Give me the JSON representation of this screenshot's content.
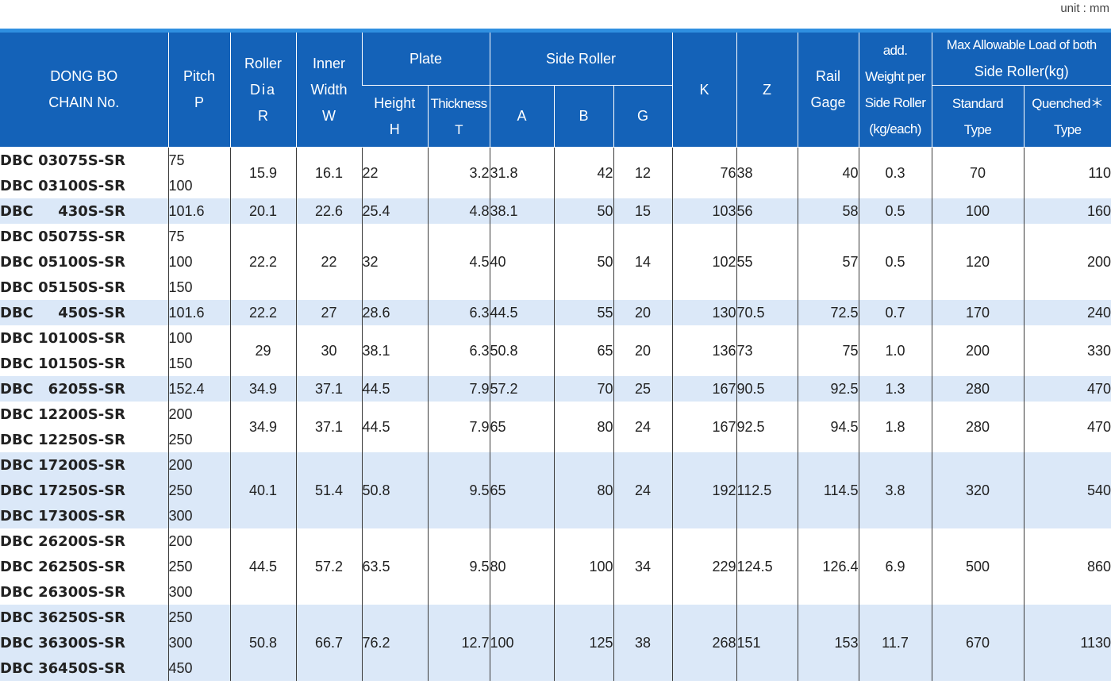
{
  "unit_label": "unit : mm",
  "header": {
    "chain_no": [
      "DONG BO",
      "CHAIN No."
    ],
    "pitch": [
      "Pitch",
      "P"
    ],
    "roller_dia": [
      "Roller",
      "Dia",
      "R"
    ],
    "inner_width": [
      "Inner",
      "Width",
      "W"
    ],
    "plate": "Plate",
    "plate_height": [
      "Height",
      "H"
    ],
    "plate_thickness": [
      "Thickness",
      "T"
    ],
    "side_roller": "Side Roller",
    "side_a": "A",
    "side_b": "B",
    "side_g": "G",
    "k": "K",
    "z": "Z",
    "rail_gage": [
      "Rail",
      "Gage"
    ],
    "add_weight": [
      "add.",
      "Weight per",
      "Side Roller",
      "(kg/each)"
    ],
    "max_load": [
      "Max Allowable Load of both",
      "Side Roller(kg)"
    ],
    "standard": [
      "Standard",
      "Type"
    ],
    "quenched": [
      "Quenched＊",
      "Type"
    ]
  },
  "groups": [
    {
      "chains": [
        {
          "no": "DBC 03075S-SR",
          "pitch": "75"
        },
        {
          "no": "DBC 03100S-SR",
          "pitch": "100"
        }
      ],
      "R": "15.9",
      "W": "16.1",
      "H": "22",
      "T": "3.2",
      "A": "31.8",
      "B": "42",
      "G": "12",
      "K": "76",
      "Z": "38",
      "rail": "40",
      "weight": "0.3",
      "standard": "70",
      "quenched": "110"
    },
    {
      "chains": [
        {
          "no": "DBC     430S-SR",
          "pitch": "101.6"
        }
      ],
      "R": "20.1",
      "W": "22.6",
      "H": "25.4",
      "T": "4.8",
      "A": "38.1",
      "B": "50",
      "G": "15",
      "K": "103",
      "Z": "56",
      "rail": "58",
      "weight": "0.5",
      "standard": "100",
      "quenched": "160"
    },
    {
      "chains": [
        {
          "no": "DBC 05075S-SR",
          "pitch": "75"
        },
        {
          "no": "DBC 05100S-SR",
          "pitch": "100"
        },
        {
          "no": "DBC 05150S-SR",
          "pitch": "150"
        }
      ],
      "R": "22.2",
      "W": "22",
      "H": "32",
      "T": "4.5",
      "A": "40",
      "B": "50",
      "G": "14",
      "K": "102",
      "Z": "55",
      "rail": "57",
      "weight": "0.5",
      "standard": "120",
      "quenched": "200"
    },
    {
      "chains": [
        {
          "no": "DBC     450S-SR",
          "pitch": "101.6"
        }
      ],
      "R": "22.2",
      "W": "27",
      "H": "28.6",
      "T": "6.3",
      "A": "44.5",
      "B": "55",
      "G": "20",
      "K": "130",
      "Z": "70.5",
      "rail": "72.5",
      "weight": "0.7",
      "standard": "170",
      "quenched": "240"
    },
    {
      "chains": [
        {
          "no": "DBC 10100S-SR",
          "pitch": "100"
        },
        {
          "no": "DBC 10150S-SR",
          "pitch": "150"
        }
      ],
      "R": "29",
      "W": "30",
      "H": "38.1",
      "T": "6.3",
      "A": "50.8",
      "B": "65",
      "G": "20",
      "K": "136",
      "Z": "73",
      "rail": "75",
      "weight": "1.0",
      "standard": "200",
      "quenched": "330"
    },
    {
      "chains": [
        {
          "no": "DBC   6205S-SR",
          "pitch": "152.4"
        }
      ],
      "R": "34.9",
      "W": "37.1",
      "H": "44.5",
      "T": "7.9",
      "A": "57.2",
      "B": "70",
      "G": "25",
      "K": "167",
      "Z": "90.5",
      "rail": "92.5",
      "weight": "1.3",
      "standard": "280",
      "quenched": "470"
    },
    {
      "chains": [
        {
          "no": "DBC 12200S-SR",
          "pitch": "200"
        },
        {
          "no": "DBC 12250S-SR",
          "pitch": "250"
        }
      ],
      "R": "34.9",
      "W": "37.1",
      "H": "44.5",
      "T": "7.9",
      "A": "65",
      "B": "80",
      "G": "24",
      "K": "167",
      "Z": "92.5",
      "rail": "94.5",
      "weight": "1.8",
      "standard": "280",
      "quenched": "470"
    },
    {
      "chains": [
        {
          "no": "DBC 17200S-SR",
          "pitch": "200"
        },
        {
          "no": "DBC 17250S-SR",
          "pitch": "250"
        },
        {
          "no": "DBC 17300S-SR",
          "pitch": "300"
        }
      ],
      "R": "40.1",
      "W": "51.4",
      "H": "50.8",
      "T": "9.5",
      "A": "65",
      "B": "80",
      "G": "24",
      "K": "192",
      "Z": "112.5",
      "rail": "114.5",
      "weight": "3.8",
      "standard": "320",
      "quenched": "540"
    },
    {
      "chains": [
        {
          "no": "DBC 26200S-SR",
          "pitch": "200"
        },
        {
          "no": "DBC 26250S-SR",
          "pitch": "250"
        },
        {
          "no": "DBC 26300S-SR",
          "pitch": "300"
        }
      ],
      "R": "44.5",
      "W": "57.2",
      "H": "63.5",
      "T": "9.5",
      "A": "80",
      "B": "100",
      "G": "34",
      "K": "229",
      "Z": "124.5",
      "rail": "126.4",
      "weight": "6.9",
      "standard": "500",
      "quenched": "860"
    },
    {
      "chains": [
        {
          "no": "DBC 36250S-SR",
          "pitch": "250"
        },
        {
          "no": "DBC 36300S-SR",
          "pitch": "300"
        },
        {
          "no": "DBC 36450S-SR",
          "pitch": "450"
        }
      ],
      "R": "50.8",
      "W": "66.7",
      "H": "76.2",
      "T": "12.7",
      "A": "100",
      "B": "125",
      "G": "38",
      "K": "268",
      "Z": "151",
      "rail": "153",
      "weight": "11.7",
      "standard": "670",
      "quenched": "1130"
    }
  ],
  "colors": {
    "header_bg": "#1462b8",
    "top_bar": "#2f8fe0",
    "row_shade": "#dbe8f8"
  }
}
